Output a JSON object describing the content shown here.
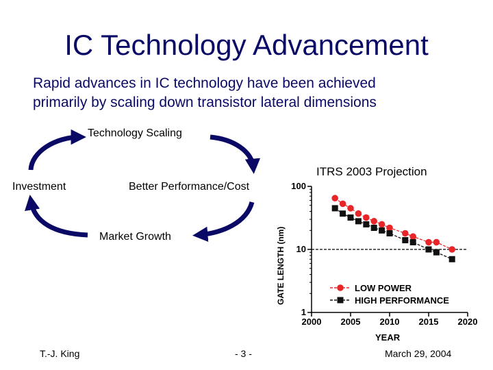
{
  "slide": {
    "title": "IC Technology Advancement",
    "subtitle_line1": "Rapid advances in IC technology have been achieved",
    "subtitle_line2": "primarily by scaling down transistor lateral dimensions"
  },
  "cycle": {
    "top": "Technology Scaling",
    "left": "Investment",
    "right": "Better Performance/Cost",
    "bottom": "Market Growth",
    "arrow_color": "#0a0a66"
  },
  "footer": {
    "author": "T.-J. King",
    "page": "- 3 -",
    "date": "March 29, 2004"
  },
  "chart_data": {
    "type": "scatter",
    "title": "ITRS 2003 Projection",
    "xlabel": "YEAR",
    "ylabel": "GATE LENGTH (nm)",
    "y_scale": "log",
    "xlim": [
      2000,
      2020
    ],
    "ylim": [
      1,
      100
    ],
    "x_ticks": [
      "2000",
      "2005",
      "2010",
      "2015",
      "2020"
    ],
    "y_ticks": [
      "1",
      "10",
      "100"
    ],
    "series": [
      {
        "name": "LOW POWER",
        "color": "#e8262a",
        "marker": "circle",
        "x": [
          2003,
          2004,
          2005,
          2006,
          2007,
          2008,
          2009,
          2010,
          2012,
          2013,
          2015,
          2016,
          2018
        ],
        "y": [
          65,
          53,
          45,
          37,
          32,
          28,
          25,
          22,
          18,
          16,
          13,
          13,
          10
        ]
      },
      {
        "name": "HIGH PERFORMANCE",
        "color": "#111111",
        "marker": "square",
        "x": [
          2003,
          2004,
          2005,
          2006,
          2007,
          2008,
          2009,
          2010,
          2012,
          2013,
          2015,
          2016,
          2018
        ],
        "y": [
          45,
          37,
          32,
          28,
          25,
          22,
          20,
          18,
          14,
          13,
          10,
          9,
          7
        ]
      }
    ],
    "reference_line_y": 10
  }
}
